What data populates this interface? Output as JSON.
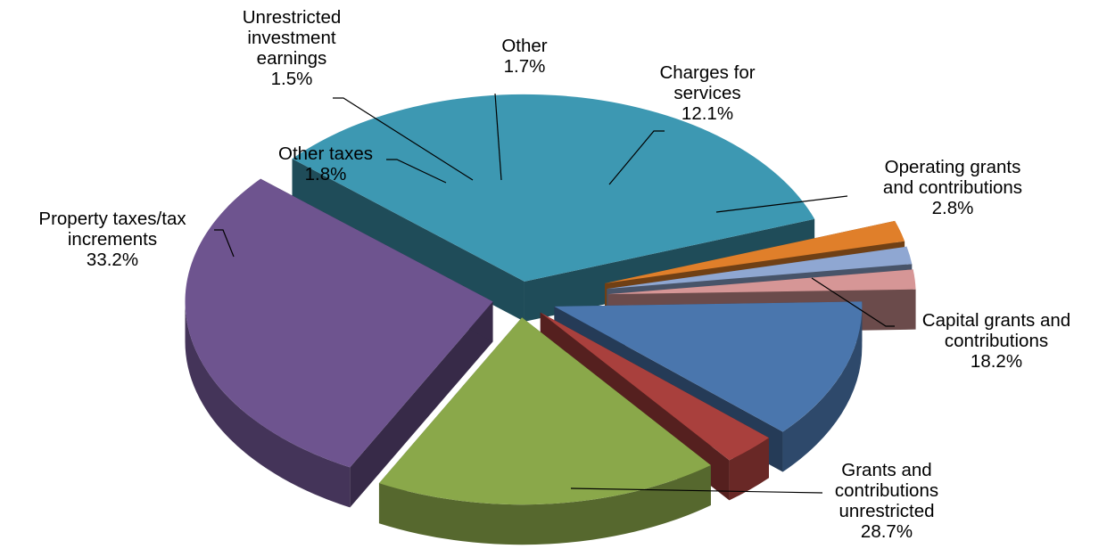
{
  "chart_data": {
    "type": "pie",
    "title": "",
    "categories": [
      "Charges for services",
      "Operating grants and contributions",
      "Capital grants and contributions",
      "Grants and contributions unrestricted",
      "Property taxes/tax increments",
      "Other taxes",
      "Unrestricted investment earnings",
      "Other"
    ],
    "values": [
      12.1,
      2.8,
      18.2,
      28.7,
      33.2,
      1.8,
      1.5,
      1.7
    ],
    "unit": "%",
    "colors": [
      "#4a76ad",
      "#a9403d",
      "#8aa84a",
      "#6e548f",
      "#3d98b2",
      "#e07f2a",
      "#8fa7d2",
      "#d69696"
    ],
    "labels": [
      {
        "lines": [
          "Charges for",
          "services"
        ],
        "value": "12.1%"
      },
      {
        "lines": [
          "Operating grants",
          "and contributions"
        ],
        "value": "2.8%"
      },
      {
        "lines": [
          "Capital grants and",
          "contributions"
        ],
        "value": "18.2%"
      },
      {
        "lines": [
          "Grants and",
          "contributions",
          "unrestricted"
        ],
        "value": "28.7%"
      },
      {
        "lines": [
          "Property taxes/tax",
          "increments"
        ],
        "value": "33.2%"
      },
      {
        "lines": [
          "Other taxes"
        ],
        "value": "1.8%"
      },
      {
        "lines": [
          "Unrestricted",
          "investment",
          "earnings"
        ],
        "value": "1.5%"
      },
      {
        "lines": [
          "Other"
        ],
        "value": "1.7%"
      }
    ],
    "style": "3d-exploded",
    "legend": "none"
  }
}
